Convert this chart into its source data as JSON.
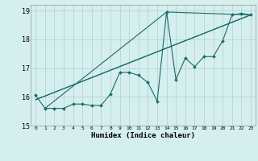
{
  "xlabel": "Humidex (Indice chaleur)",
  "bg_color": "#d5eeee",
  "line_color": "#1a6b6b",
  "grid_color": "#b8d4d4",
  "xlim": [
    -0.5,
    23.5
  ],
  "ylim": [
    15,
    19.2
  ],
  "xticks": [
    0,
    1,
    2,
    3,
    4,
    5,
    6,
    7,
    8,
    9,
    10,
    11,
    12,
    13,
    14,
    15,
    16,
    17,
    18,
    19,
    20,
    21,
    22,
    23
  ],
  "yticks": [
    15,
    16,
    17,
    18,
    19
  ],
  "series": [
    [
      0,
      16.05
    ],
    [
      1,
      15.6
    ],
    [
      2,
      15.6
    ],
    [
      3,
      15.6
    ],
    [
      4,
      15.75
    ],
    [
      5,
      15.75
    ],
    [
      6,
      15.7
    ],
    [
      7,
      15.7
    ],
    [
      8,
      16.1
    ],
    [
      9,
      16.85
    ],
    [
      10,
      16.85
    ],
    [
      11,
      16.75
    ],
    [
      12,
      16.5
    ],
    [
      13,
      15.85
    ],
    [
      14,
      18.95
    ],
    [
      15,
      16.6
    ],
    [
      16,
      17.35
    ],
    [
      17,
      17.05
    ],
    [
      18,
      17.4
    ],
    [
      19,
      17.4
    ],
    [
      20,
      17.95
    ],
    [
      21,
      18.85
    ],
    [
      22,
      18.9
    ],
    [
      23,
      18.85
    ]
  ],
  "trend_line1": [
    [
      0,
      15.9
    ],
    [
      23,
      18.85
    ]
  ],
  "trend_line2": [
    [
      0,
      15.9
    ],
    [
      23,
      18.85
    ]
  ],
  "trend_line3": [
    [
      1,
      15.6
    ],
    [
      14,
      18.95
    ],
    [
      23,
      18.85
    ]
  ]
}
